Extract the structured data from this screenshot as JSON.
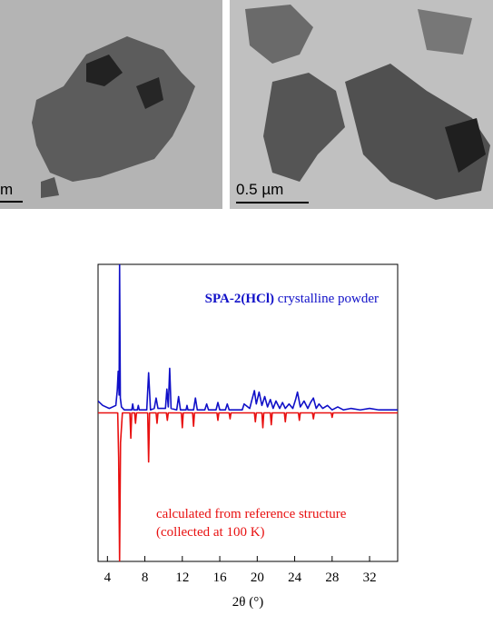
{
  "images": [
    {
      "scale_label": "m"
    },
    {
      "scale_label": "0.5 µm"
    }
  ],
  "chart_data": {
    "type": "line",
    "x_label": "2θ (°)",
    "annotations": [
      "SPA-2(HCl)",
      "crystalline powder",
      "calculated from reference structure",
      "(collected at 100 K)"
    ],
    "xlim": [
      3,
      35
    ],
    "xticks": [
      4,
      8,
      12,
      16,
      20,
      24,
      28,
      32
    ],
    "ylim": [
      -100,
      100
    ],
    "series": [
      {
        "color": "#1010c8",
        "x": [
          3,
          3.5,
          4.2,
          4.9,
          5.05,
          5.15,
          5.25,
          5.3,
          5.38,
          5.5,
          5.8,
          6.6,
          6.7,
          6.8,
          7.2,
          7.3,
          7.4,
          8.2,
          8.4,
          8.6,
          9.0,
          9.2,
          9.4,
          10.2,
          10.35,
          10.5,
          10.65,
          10.8,
          11.4,
          11.6,
          11.8,
          12.4,
          12.5,
          12.6,
          13.2,
          13.4,
          13.6,
          14.4,
          14.6,
          14.8,
          15.6,
          15.8,
          16.0,
          16.6,
          16.8,
          17.0,
          18.4,
          18.6,
          19.2,
          19.4,
          19.7,
          19.9,
          20.2,
          20.5,
          20.8,
          21.1,
          21.4,
          21.7,
          22.0,
          22.4,
          22.7,
          23.0,
          23.4,
          23.8,
          24.1,
          24.3,
          24.6,
          25.0,
          25.4,
          25.7,
          26.0,
          26.3,
          26.6,
          27.0,
          27.5,
          28.0,
          28.6,
          29.2,
          30,
          31,
          32,
          33,
          34,
          35
        ],
        "values": [
          8,
          5,
          3,
          5,
          15,
          28,
          12,
          100,
          10,
          4,
          2,
          2,
          6,
          2,
          2,
          5,
          2,
          2,
          27,
          2,
          3,
          10,
          3,
          3,
          16,
          4,
          30,
          3,
          2,
          11,
          2,
          2,
          5,
          2,
          2,
          10,
          2,
          2,
          6,
          2,
          2,
          7,
          2,
          2,
          6,
          2,
          2,
          6,
          3,
          8,
          15,
          6,
          14,
          5,
          11,
          4,
          9,
          3,
          8,
          3,
          7,
          3,
          6,
          3,
          9,
          14,
          4,
          8,
          3,
          7,
          10,
          3,
          6,
          3,
          5,
          2,
          4,
          2,
          3,
          2,
          3,
          2,
          2,
          2
        ]
      },
      {
        "color": "#e81010",
        "x": [
          3,
          5.1,
          5.2,
          5.3,
          5.4,
          5.6,
          6.4,
          6.5,
          6.6,
          6.9,
          7.0,
          7.1,
          8.3,
          8.4,
          8.5,
          9.2,
          9.3,
          9.4,
          10.3,
          10.4,
          10.5,
          11.9,
          12.0,
          12.1,
          13.1,
          13.2,
          13.3,
          15.7,
          15.8,
          15.9,
          17.0,
          17.1,
          17.2,
          19.7,
          19.8,
          19.9,
          20.5,
          20.6,
          20.7,
          21.4,
          21.5,
          21.6,
          22.9,
          23.0,
          23.1,
          24.4,
          24.5,
          24.6,
          25.9,
          26.0,
          26.1,
          27.9,
          28.0,
          28.1,
          35
        ],
        "values": [
          0,
          0,
          -30,
          -100,
          -20,
          0,
          0,
          -17,
          0,
          0,
          -7,
          0,
          0,
          -33,
          0,
          0,
          -7,
          0,
          0,
          -5,
          0,
          0,
          -10,
          0,
          0,
          -9,
          0,
          0,
          -5,
          0,
          0,
          -4,
          0,
          0,
          -6,
          0,
          0,
          -10,
          0,
          0,
          -8,
          0,
          0,
          -6,
          0,
          0,
          -5,
          0,
          0,
          -4,
          0,
          0,
          -3,
          0,
          0
        ]
      }
    ]
  }
}
